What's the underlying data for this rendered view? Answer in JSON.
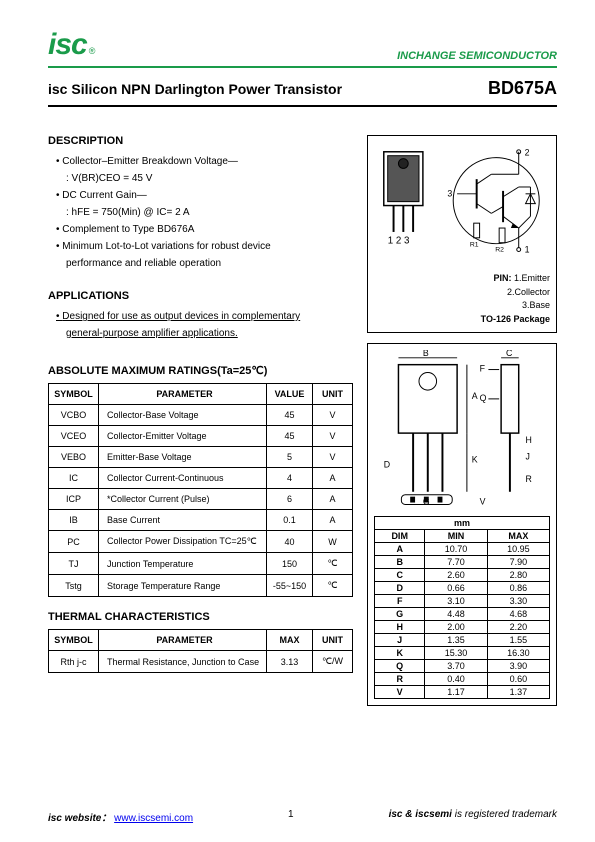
{
  "header": {
    "logo_text": "isc",
    "brand_right": "INCHANGE SEMICONDUCTOR"
  },
  "title": {
    "main": "isc Silicon NPN Darlington Power Transistor",
    "part": "BD675A"
  },
  "description": {
    "heading": "DESCRIPTION",
    "items": [
      "Collector–Emitter Breakdown Voltage—",
      "DC Current Gain—",
      "Complement to Type BD676A",
      "Minimum Lot-to-Lot variations for robust device"
    ],
    "sub1": ": V(BR)CEO = 45 V",
    "sub2": ": hFE = 750(Min) @ IC= 2 A",
    "sub3": "performance and reliable operation"
  },
  "applications": {
    "heading": "APPLICATIONS",
    "line1": "Designed for use as output devices in complementary",
    "line2": "general-purpose amplifier applications."
  },
  "ratings": {
    "heading": "ABSOLUTE MAXIMUM RATINGS(Ta=25℃)",
    "columns": [
      "SYMBOL",
      "PARAMETER",
      "VALUE",
      "UNIT"
    ],
    "rows": [
      {
        "sym": "VCBO",
        "param": "Collector-Base Voltage",
        "value": "45",
        "unit": "V"
      },
      {
        "sym": "VCEO",
        "param": "Collector-Emitter Voltage",
        "value": "45",
        "unit": "V"
      },
      {
        "sym": "VEBO",
        "param": "Emitter-Base Voltage",
        "value": "5",
        "unit": "V"
      },
      {
        "sym": "IC",
        "param": "Collector Current-Continuous",
        "value": "4",
        "unit": "A"
      },
      {
        "sym": "ICP",
        "param": "*Collector Current (Pulse)",
        "value": "6",
        "unit": "A"
      },
      {
        "sym": "IB",
        "param": "Base Current",
        "value": "0.1",
        "unit": "A"
      },
      {
        "sym": "PC",
        "param": "Collector Power Dissipation TC=25℃",
        "value": "40",
        "unit": "W"
      },
      {
        "sym": "TJ",
        "param": "Junction Temperature",
        "value": "150",
        "unit": "℃"
      },
      {
        "sym": "Tstg",
        "param": "Storage Temperature Range",
        "value": "-55~150",
        "unit": "℃"
      }
    ]
  },
  "thermal": {
    "heading": "THERMAL CHARACTERISTICS",
    "columns": [
      "SYMBOL",
      "PARAMETER",
      "MAX",
      "UNIT"
    ],
    "rows": [
      {
        "sym": "Rth j-c",
        "param": "Thermal Resistance, Junction to Case",
        "max": "3.13",
        "unit": "℃/W"
      }
    ]
  },
  "pins": {
    "heading": "PIN:",
    "p1": "1.Emitter",
    "p2": "2.Collector",
    "p3": "3.Base",
    "pkg": "TO-126 Package",
    "nums": "1 2 3"
  },
  "dims": {
    "heading": "mm",
    "cols": [
      "DIM",
      "MIN",
      "MAX"
    ],
    "rows": [
      [
        "A",
        "10.70",
        "10.95"
      ],
      [
        "B",
        "7.70",
        "7.90"
      ],
      [
        "C",
        "2.60",
        "2.80"
      ],
      [
        "D",
        "0.66",
        "0.86"
      ],
      [
        "F",
        "3.10",
        "3.30"
      ],
      [
        "G",
        "4.48",
        "4.68"
      ],
      [
        "H",
        "2.00",
        "2.20"
      ],
      [
        "J",
        "1.35",
        "1.55"
      ],
      [
        "K",
        "15.30",
        "16.30"
      ],
      [
        "Q",
        "3.70",
        "3.90"
      ],
      [
        "R",
        "0.40",
        "0.60"
      ],
      [
        "V",
        "1.17",
        "1.37"
      ]
    ]
  },
  "footer": {
    "left_label": "isc website：",
    "url": "www.iscsemi.com",
    "page": "1",
    "right": "isc & iscsemi is registered trademark"
  },
  "colors": {
    "green": "#1a9b4a",
    "black": "#000000",
    "link": "#0000ee"
  }
}
